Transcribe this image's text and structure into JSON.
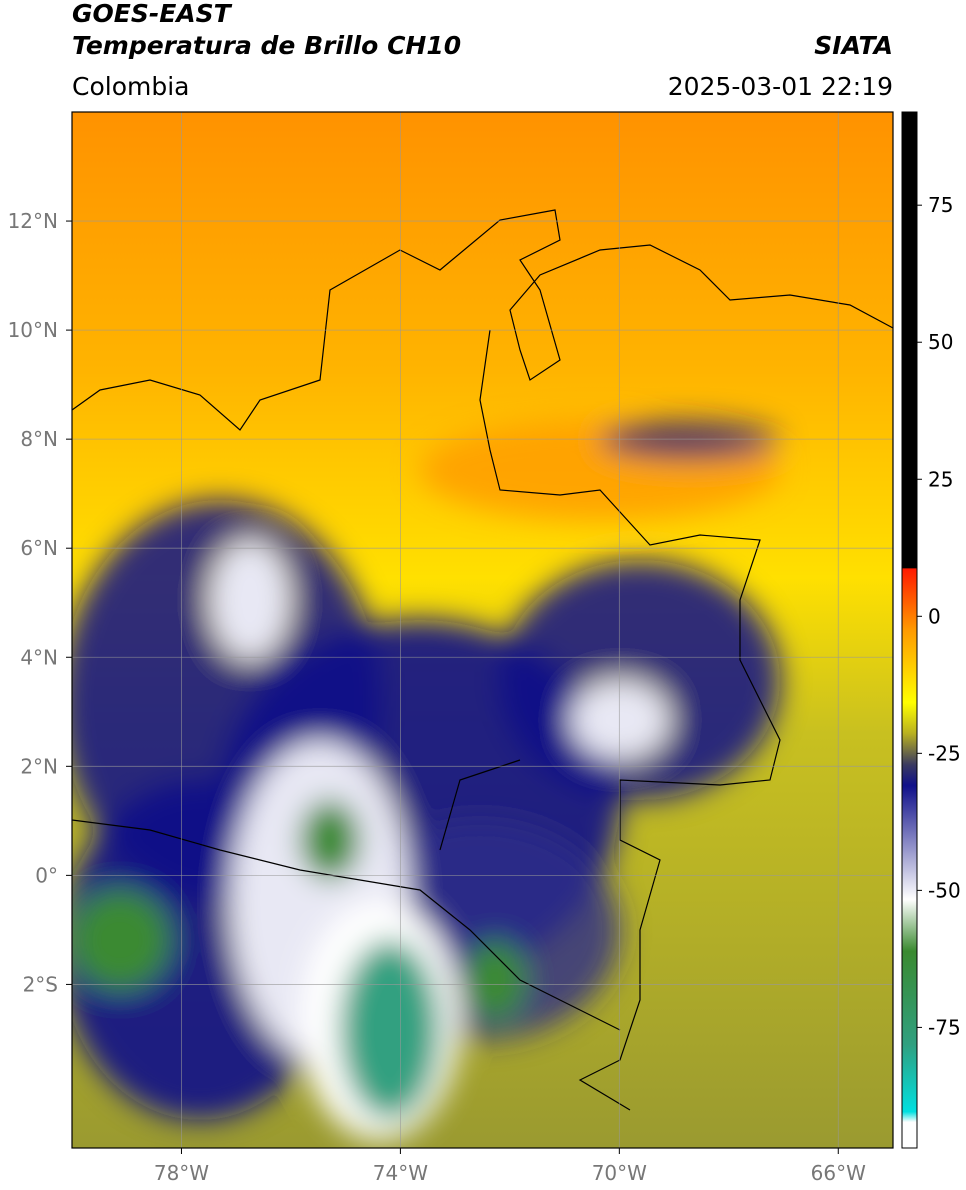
{
  "header": {
    "satellite": "GOES-EAST",
    "product": "Temperatura de Brillo CH10",
    "region": "Colombia",
    "source": "SIATA",
    "timestamp": "2025-03-01 22:19"
  },
  "map": {
    "lon_lim": [
      -80,
      -65
    ],
    "lat_lim": [
      -5,
      14
    ],
    "grid": true,
    "lat_ticks": [
      {
        "value": 12,
        "label": "12°N"
      },
      {
        "value": 10,
        "label": "10°N"
      },
      {
        "value": 8,
        "label": "8°N"
      },
      {
        "value": 6,
        "label": "6°N"
      },
      {
        "value": 4,
        "label": "4°N"
      },
      {
        "value": 2,
        "label": "2°N"
      },
      {
        "value": 0,
        "label": "0°"
      },
      {
        "value": -2,
        "label": "2°S"
      }
    ],
    "lon_ticks": [
      {
        "value": -78,
        "label": "78°W"
      },
      {
        "value": -74,
        "label": "74°W"
      },
      {
        "value": -70,
        "label": "70°W"
      },
      {
        "value": -66,
        "label": "66°W"
      }
    ]
  },
  "colorbar": {
    "lim": [
      -97,
      92
    ],
    "ticks": [
      75,
      50,
      25,
      0,
      -25,
      -50,
      -75
    ]
  }
}
